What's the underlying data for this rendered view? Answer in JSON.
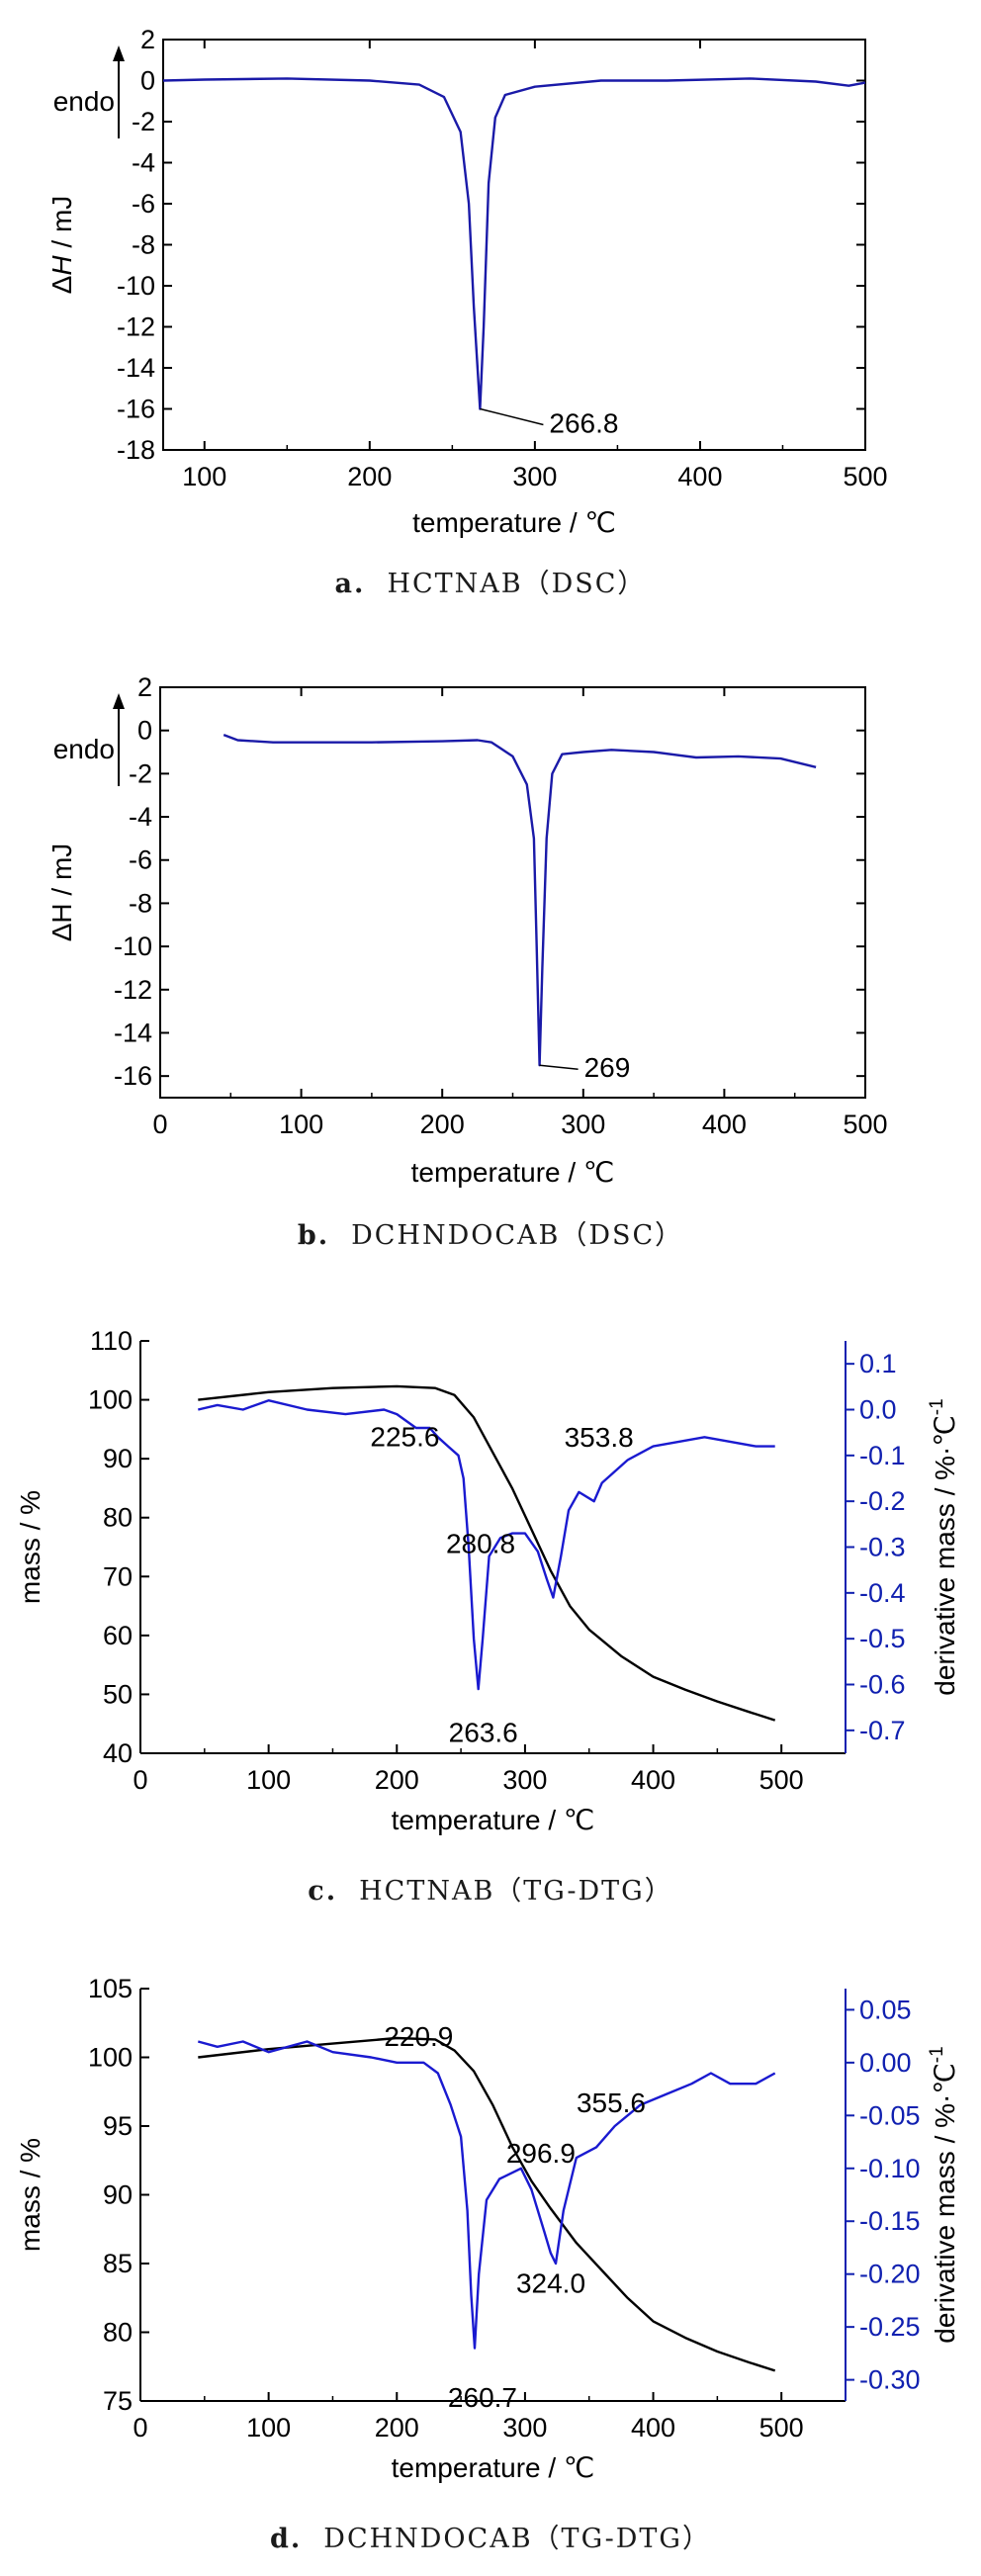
{
  "colors": {
    "dsc_line": "#1a1aa8",
    "dtg_line": "#1a1ad0",
    "tg_line": "#000000",
    "right_axis": "#1020b0"
  },
  "chart_data": [
    {
      "id": "a",
      "type": "line",
      "caption_letter": "a.",
      "caption_text": "HCTNAB（DSC）",
      "endo_label": "endo",
      "xlabel": "temperature / ℃",
      "ylabel_delta": "Δ",
      "ylabel_var": "H",
      "ylabel_unit": " / mJ",
      "xlim": [
        75,
        500
      ],
      "ylim": [
        -18,
        2
      ],
      "xticks": [
        100,
        200,
        300,
        400,
        500
      ],
      "yticks": [
        2,
        0,
        -2,
        -4,
        -6,
        -8,
        -10,
        -12,
        -14,
        -16,
        -18
      ],
      "series": [
        {
          "values": [
            [
              75,
              0.0
            ],
            [
              100,
              0.05
            ],
            [
              150,
              0.1
            ],
            [
              200,
              0.0
            ],
            [
              230,
              -0.2
            ],
            [
              245,
              -0.8
            ],
            [
              255,
              -2.5
            ],
            [
              260,
              -6
            ],
            [
              263,
              -11
            ],
            [
              266.8,
              -16.0
            ],
            [
              269,
              -12
            ],
            [
              272,
              -5
            ],
            [
              276,
              -1.8
            ],
            [
              282,
              -0.7
            ],
            [
              300,
              -0.3
            ],
            [
              340,
              0.0
            ],
            [
              380,
              0.0
            ],
            [
              430,
              0.1
            ],
            [
              470,
              -0.05
            ],
            [
              490,
              -0.25
            ],
            [
              500,
              -0.1
            ]
          ]
        }
      ],
      "annotations": [
        {
          "text": "266.8",
          "x": 266.8,
          "y": -16.0
        }
      ]
    },
    {
      "id": "b",
      "type": "line",
      "caption_letter": "b.",
      "caption_text": "DCHNDOCAB（DSC）",
      "endo_label": "endo",
      "xlabel": "temperature / ℃",
      "ylabel": "ΔH / mJ",
      "xlim": [
        0,
        500
      ],
      "ylim": [
        -17,
        2
      ],
      "xticks": [
        0,
        100,
        200,
        300,
        400,
        500
      ],
      "yticks": [
        2,
        0,
        -2,
        -4,
        -6,
        -8,
        -10,
        -12,
        -14,
        -16
      ],
      "series": [
        {
          "values": [
            [
              45,
              -0.2
            ],
            [
              55,
              -0.45
            ],
            [
              80,
              -0.55
            ],
            [
              150,
              -0.55
            ],
            [
              200,
              -0.5
            ],
            [
              225,
              -0.45
            ],
            [
              235,
              -0.55
            ],
            [
              250,
              -1.2
            ],
            [
              260,
              -2.5
            ],
            [
              265,
              -5
            ],
            [
              267,
              -10
            ],
            [
              269,
              -15.5
            ],
            [
              271,
              -11
            ],
            [
              274,
              -5
            ],
            [
              278,
              -2
            ],
            [
              285,
              -1.1
            ],
            [
              300,
              -1.0
            ],
            [
              320,
              -0.9
            ],
            [
              350,
              -1.0
            ],
            [
              380,
              -1.25
            ],
            [
              410,
              -1.2
            ],
            [
              440,
              -1.3
            ],
            [
              465,
              -1.7
            ]
          ]
        }
      ],
      "annotations": [
        {
          "text": "269",
          "x": 269,
          "y": -15.5
        }
      ]
    },
    {
      "id": "c",
      "type": "line",
      "caption_letter": "c.",
      "caption_text": "HCTNAB（TG-DTG）",
      "xlabel": "temperature / ℃",
      "ylabel": "mass / %",
      "ylabel_right": "derivative mass / %·℃",
      "ylabel_right_sup": "-1",
      "xlim": [
        0,
        550
      ],
      "ylim": [
        40,
        110
      ],
      "ylim_right": [
        -0.75,
        0.15
      ],
      "xticks": [
        0,
        100,
        200,
        300,
        400,
        500
      ],
      "yticks": [
        110,
        100,
        90,
        80,
        70,
        60,
        50,
        40
      ],
      "yticks_right": [
        "0.1",
        "0.0",
        "-0.1",
        "-0.2",
        "-0.3",
        "-0.4",
        "-0.5",
        "-0.6",
        "-0.7"
      ],
      "series": [
        {
          "name": "TG",
          "axis": "left",
          "values": [
            [
              45,
              100.0
            ],
            [
              100,
              101.3
            ],
            [
              150,
              102.0
            ],
            [
              200,
              102.3
            ],
            [
              230,
              102.0
            ],
            [
              245,
              100.8
            ],
            [
              260,
              97
            ],
            [
              275,
              91
            ],
            [
              290,
              85
            ],
            [
              305,
              78
            ],
            [
              320,
              71
            ],
            [
              335,
              65
            ],
            [
              350,
              61
            ],
            [
              375,
              56.5
            ],
            [
              400,
              53
            ],
            [
              425,
              50.8
            ],
            [
              450,
              48.8
            ],
            [
              475,
              47.0
            ],
            [
              495,
              45.6
            ]
          ]
        },
        {
          "name": "DTG",
          "axis": "right",
          "values": [
            [
              45,
              0.0
            ],
            [
              60,
              0.01
            ],
            [
              80,
              0.0
            ],
            [
              100,
              0.02
            ],
            [
              130,
              0.0
            ],
            [
              160,
              -0.01
            ],
            [
              190,
              0.0
            ],
            [
              200,
              -0.01
            ],
            [
              215,
              -0.04
            ],
            [
              225.6,
              -0.04
            ],
            [
              232,
              -0.06
            ],
            [
              240,
              -0.08
            ],
            [
              248,
              -0.1
            ],
            [
              252,
              -0.15
            ],
            [
              256,
              -0.3
            ],
            [
              260,
              -0.5
            ],
            [
              263.6,
              -0.61
            ],
            [
              267,
              -0.5
            ],
            [
              272,
              -0.32
            ],
            [
              280.8,
              -0.28
            ],
            [
              290,
              -0.27
            ],
            [
              300,
              -0.27
            ],
            [
              310,
              -0.31
            ],
            [
              317,
              -0.37
            ],
            [
              322,
              -0.41
            ],
            [
              328,
              -0.32
            ],
            [
              334,
              -0.22
            ],
            [
              342,
              -0.18
            ],
            [
              353.8,
              -0.2
            ],
            [
              360,
              -0.16
            ],
            [
              380,
              -0.11
            ],
            [
              400,
              -0.08
            ],
            [
              420,
              -0.07
            ],
            [
              440,
              -0.06
            ],
            [
              460,
              -0.07
            ],
            [
              480,
              -0.08
            ],
            [
              495,
              -0.08
            ]
          ]
        }
      ],
      "annotations": [
        {
          "text": "225.6",
          "x": 225.6,
          "y": 93.5
        },
        {
          "text": "280.8",
          "x": 280.8,
          "y": 74
        },
        {
          "text": "263.6",
          "x": 263.6,
          "y": 47
        },
        {
          "text": "353.8",
          "x": 353.8,
          "y": 92
        }
      ]
    },
    {
      "id": "d",
      "type": "line",
      "caption_letter": "d.",
      "caption_text": "DCHNDOCAB（TG-DTG）",
      "xlabel": "temperature / ℃",
      "ylabel": "mass / %",
      "ylabel_right": "derivative mass / %·℃",
      "ylabel_right_sup": "-1",
      "xlim": [
        0,
        550
      ],
      "ylim": [
        75,
        105
      ],
      "ylim_right": [
        -0.32,
        0.07
      ],
      "xticks": [
        0,
        100,
        200,
        300,
        400,
        500
      ],
      "yticks": [
        105,
        100,
        95,
        90,
        85,
        80,
        75
      ],
      "yticks_right": [
        "0.05",
        "0.00",
        "-0.05",
        "-0.10",
        "-0.15",
        "-0.20",
        "-0.25",
        "-0.30"
      ],
      "series": [
        {
          "name": "TG",
          "axis": "left",
          "values": [
            [
              45,
              100.0
            ],
            [
              100,
              100.6
            ],
            [
              150,
              101.0
            ],
            [
              200,
              101.4
            ],
            [
              230,
              101.3
            ],
            [
              245,
              100.5
            ],
            [
              260,
              99
            ],
            [
              275,
              96.5
            ],
            [
              290,
              93.5
            ],
            [
              305,
              91
            ],
            [
              320,
              89
            ],
            [
              340,
              86.5
            ],
            [
              360,
              84.5
            ],
            [
              380,
              82.5
            ],
            [
              400,
              80.8
            ],
            [
              425,
              79.6
            ],
            [
              450,
              78.6
            ],
            [
              475,
              77.8
            ],
            [
              495,
              77.2
            ]
          ]
        },
        {
          "name": "DTG",
          "axis": "right",
          "values": [
            [
              45,
              0.02
            ],
            [
              60,
              0.015
            ],
            [
              80,
              0.02
            ],
            [
              100,
              0.01
            ],
            [
              130,
              0.02
            ],
            [
              150,
              0.01
            ],
            [
              180,
              0.005
            ],
            [
              200,
              0.0
            ],
            [
              220.9,
              0.0
            ],
            [
              232,
              -0.01
            ],
            [
              242,
              -0.04
            ],
            [
              250,
              -0.07
            ],
            [
              255,
              -0.14
            ],
            [
              258,
              -0.22
            ],
            [
              260.7,
              -0.27
            ],
            [
              264,
              -0.2
            ],
            [
              270,
              -0.13
            ],
            [
              280,
              -0.11
            ],
            [
              296.9,
              -0.1
            ],
            [
              305,
              -0.12
            ],
            [
              315,
              -0.16
            ],
            [
              320,
              -0.18
            ],
            [
              324,
              -0.19
            ],
            [
              330,
              -0.14
            ],
            [
              340,
              -0.09
            ],
            [
              355.6,
              -0.08
            ],
            [
              370,
              -0.06
            ],
            [
              390,
              -0.04
            ],
            [
              410,
              -0.03
            ],
            [
              430,
              -0.02
            ],
            [
              445,
              -0.01
            ],
            [
              460,
              -0.02
            ],
            [
              480,
              -0.02
            ],
            [
              495,
              -0.01
            ]
          ]
        }
      ],
      "annotations": [
        {
          "text": "220.9",
          "x": 220.9,
          "y": 101.4
        },
        {
          "text": "296.9",
          "x": 296.9,
          "y": 92.5
        },
        {
          "text": "324.0",
          "x": 324.0,
          "y": 84.6
        },
        {
          "text": "260.7",
          "x": 260.7,
          "y": 77
        },
        {
          "text": "355.6",
          "x": 355.6,
          "y": 96
        }
      ]
    }
  ]
}
